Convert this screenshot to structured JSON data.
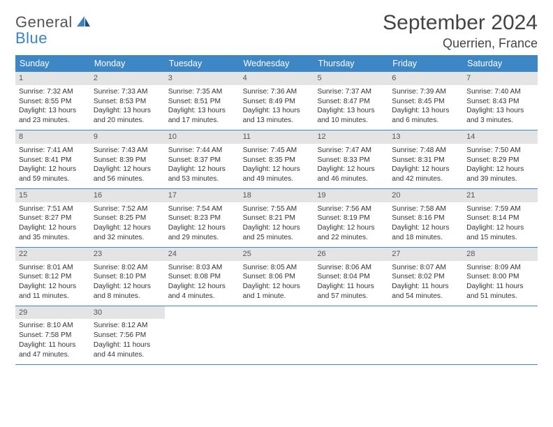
{
  "logo": {
    "line1": "General",
    "line2": "Blue"
  },
  "title": "September 2024",
  "location": "Querrien, France",
  "colors": {
    "header_bg": "#3d87c7",
    "header_fg": "#ffffff",
    "daynum_bg": "#e4e4e4",
    "daynum_fg": "#555555",
    "row_divider": "#3d87c7",
    "logo_gray": "#555555",
    "logo_blue": "#3b82c4",
    "background": "#ffffff",
    "body_text": "#333333"
  },
  "typography": {
    "title_fontsize": 30,
    "location_fontsize": 18,
    "weekday_fontsize": 12.5,
    "daynum_fontsize": 11,
    "body_fontsize": 10.2
  },
  "weekdays": [
    "Sunday",
    "Monday",
    "Tuesday",
    "Wednesday",
    "Thursday",
    "Friday",
    "Saturday"
  ],
  "weeks": [
    [
      {
        "n": "1",
        "sunrise": "7:32 AM",
        "sunset": "8:55 PM",
        "daylight": "13 hours and 23 minutes."
      },
      {
        "n": "2",
        "sunrise": "7:33 AM",
        "sunset": "8:53 PM",
        "daylight": "13 hours and 20 minutes."
      },
      {
        "n": "3",
        "sunrise": "7:35 AM",
        "sunset": "8:51 PM",
        "daylight": "13 hours and 17 minutes."
      },
      {
        "n": "4",
        "sunrise": "7:36 AM",
        "sunset": "8:49 PM",
        "daylight": "13 hours and 13 minutes."
      },
      {
        "n": "5",
        "sunrise": "7:37 AM",
        "sunset": "8:47 PM",
        "daylight": "13 hours and 10 minutes."
      },
      {
        "n": "6",
        "sunrise": "7:39 AM",
        "sunset": "8:45 PM",
        "daylight": "13 hours and 6 minutes."
      },
      {
        "n": "7",
        "sunrise": "7:40 AM",
        "sunset": "8:43 PM",
        "daylight": "13 hours and 3 minutes."
      }
    ],
    [
      {
        "n": "8",
        "sunrise": "7:41 AM",
        "sunset": "8:41 PM",
        "daylight": "12 hours and 59 minutes."
      },
      {
        "n": "9",
        "sunrise": "7:43 AM",
        "sunset": "8:39 PM",
        "daylight": "12 hours and 56 minutes."
      },
      {
        "n": "10",
        "sunrise": "7:44 AM",
        "sunset": "8:37 PM",
        "daylight": "12 hours and 53 minutes."
      },
      {
        "n": "11",
        "sunrise": "7:45 AM",
        "sunset": "8:35 PM",
        "daylight": "12 hours and 49 minutes."
      },
      {
        "n": "12",
        "sunrise": "7:47 AM",
        "sunset": "8:33 PM",
        "daylight": "12 hours and 46 minutes."
      },
      {
        "n": "13",
        "sunrise": "7:48 AM",
        "sunset": "8:31 PM",
        "daylight": "12 hours and 42 minutes."
      },
      {
        "n": "14",
        "sunrise": "7:50 AM",
        "sunset": "8:29 PM",
        "daylight": "12 hours and 39 minutes."
      }
    ],
    [
      {
        "n": "15",
        "sunrise": "7:51 AM",
        "sunset": "8:27 PM",
        "daylight": "12 hours and 35 minutes."
      },
      {
        "n": "16",
        "sunrise": "7:52 AM",
        "sunset": "8:25 PM",
        "daylight": "12 hours and 32 minutes."
      },
      {
        "n": "17",
        "sunrise": "7:54 AM",
        "sunset": "8:23 PM",
        "daylight": "12 hours and 29 minutes."
      },
      {
        "n": "18",
        "sunrise": "7:55 AM",
        "sunset": "8:21 PM",
        "daylight": "12 hours and 25 minutes."
      },
      {
        "n": "19",
        "sunrise": "7:56 AM",
        "sunset": "8:19 PM",
        "daylight": "12 hours and 22 minutes."
      },
      {
        "n": "20",
        "sunrise": "7:58 AM",
        "sunset": "8:16 PM",
        "daylight": "12 hours and 18 minutes."
      },
      {
        "n": "21",
        "sunrise": "7:59 AM",
        "sunset": "8:14 PM",
        "daylight": "12 hours and 15 minutes."
      }
    ],
    [
      {
        "n": "22",
        "sunrise": "8:01 AM",
        "sunset": "8:12 PM",
        "daylight": "12 hours and 11 minutes."
      },
      {
        "n": "23",
        "sunrise": "8:02 AM",
        "sunset": "8:10 PM",
        "daylight": "12 hours and 8 minutes."
      },
      {
        "n": "24",
        "sunrise": "8:03 AM",
        "sunset": "8:08 PM",
        "daylight": "12 hours and 4 minutes."
      },
      {
        "n": "25",
        "sunrise": "8:05 AM",
        "sunset": "8:06 PM",
        "daylight": "12 hours and 1 minute."
      },
      {
        "n": "26",
        "sunrise": "8:06 AM",
        "sunset": "8:04 PM",
        "daylight": "11 hours and 57 minutes."
      },
      {
        "n": "27",
        "sunrise": "8:07 AM",
        "sunset": "8:02 PM",
        "daylight": "11 hours and 54 minutes."
      },
      {
        "n": "28",
        "sunrise": "8:09 AM",
        "sunset": "8:00 PM",
        "daylight": "11 hours and 51 minutes."
      }
    ],
    [
      {
        "n": "29",
        "sunrise": "8:10 AM",
        "sunset": "7:58 PM",
        "daylight": "11 hours and 47 minutes."
      },
      {
        "n": "30",
        "sunrise": "8:12 AM",
        "sunset": "7:56 PM",
        "daylight": "11 hours and 44 minutes."
      },
      null,
      null,
      null,
      null,
      null
    ]
  ],
  "labels": {
    "sunrise_prefix": "Sunrise: ",
    "sunset_prefix": "Sunset: ",
    "daylight_prefix": "Daylight: "
  }
}
